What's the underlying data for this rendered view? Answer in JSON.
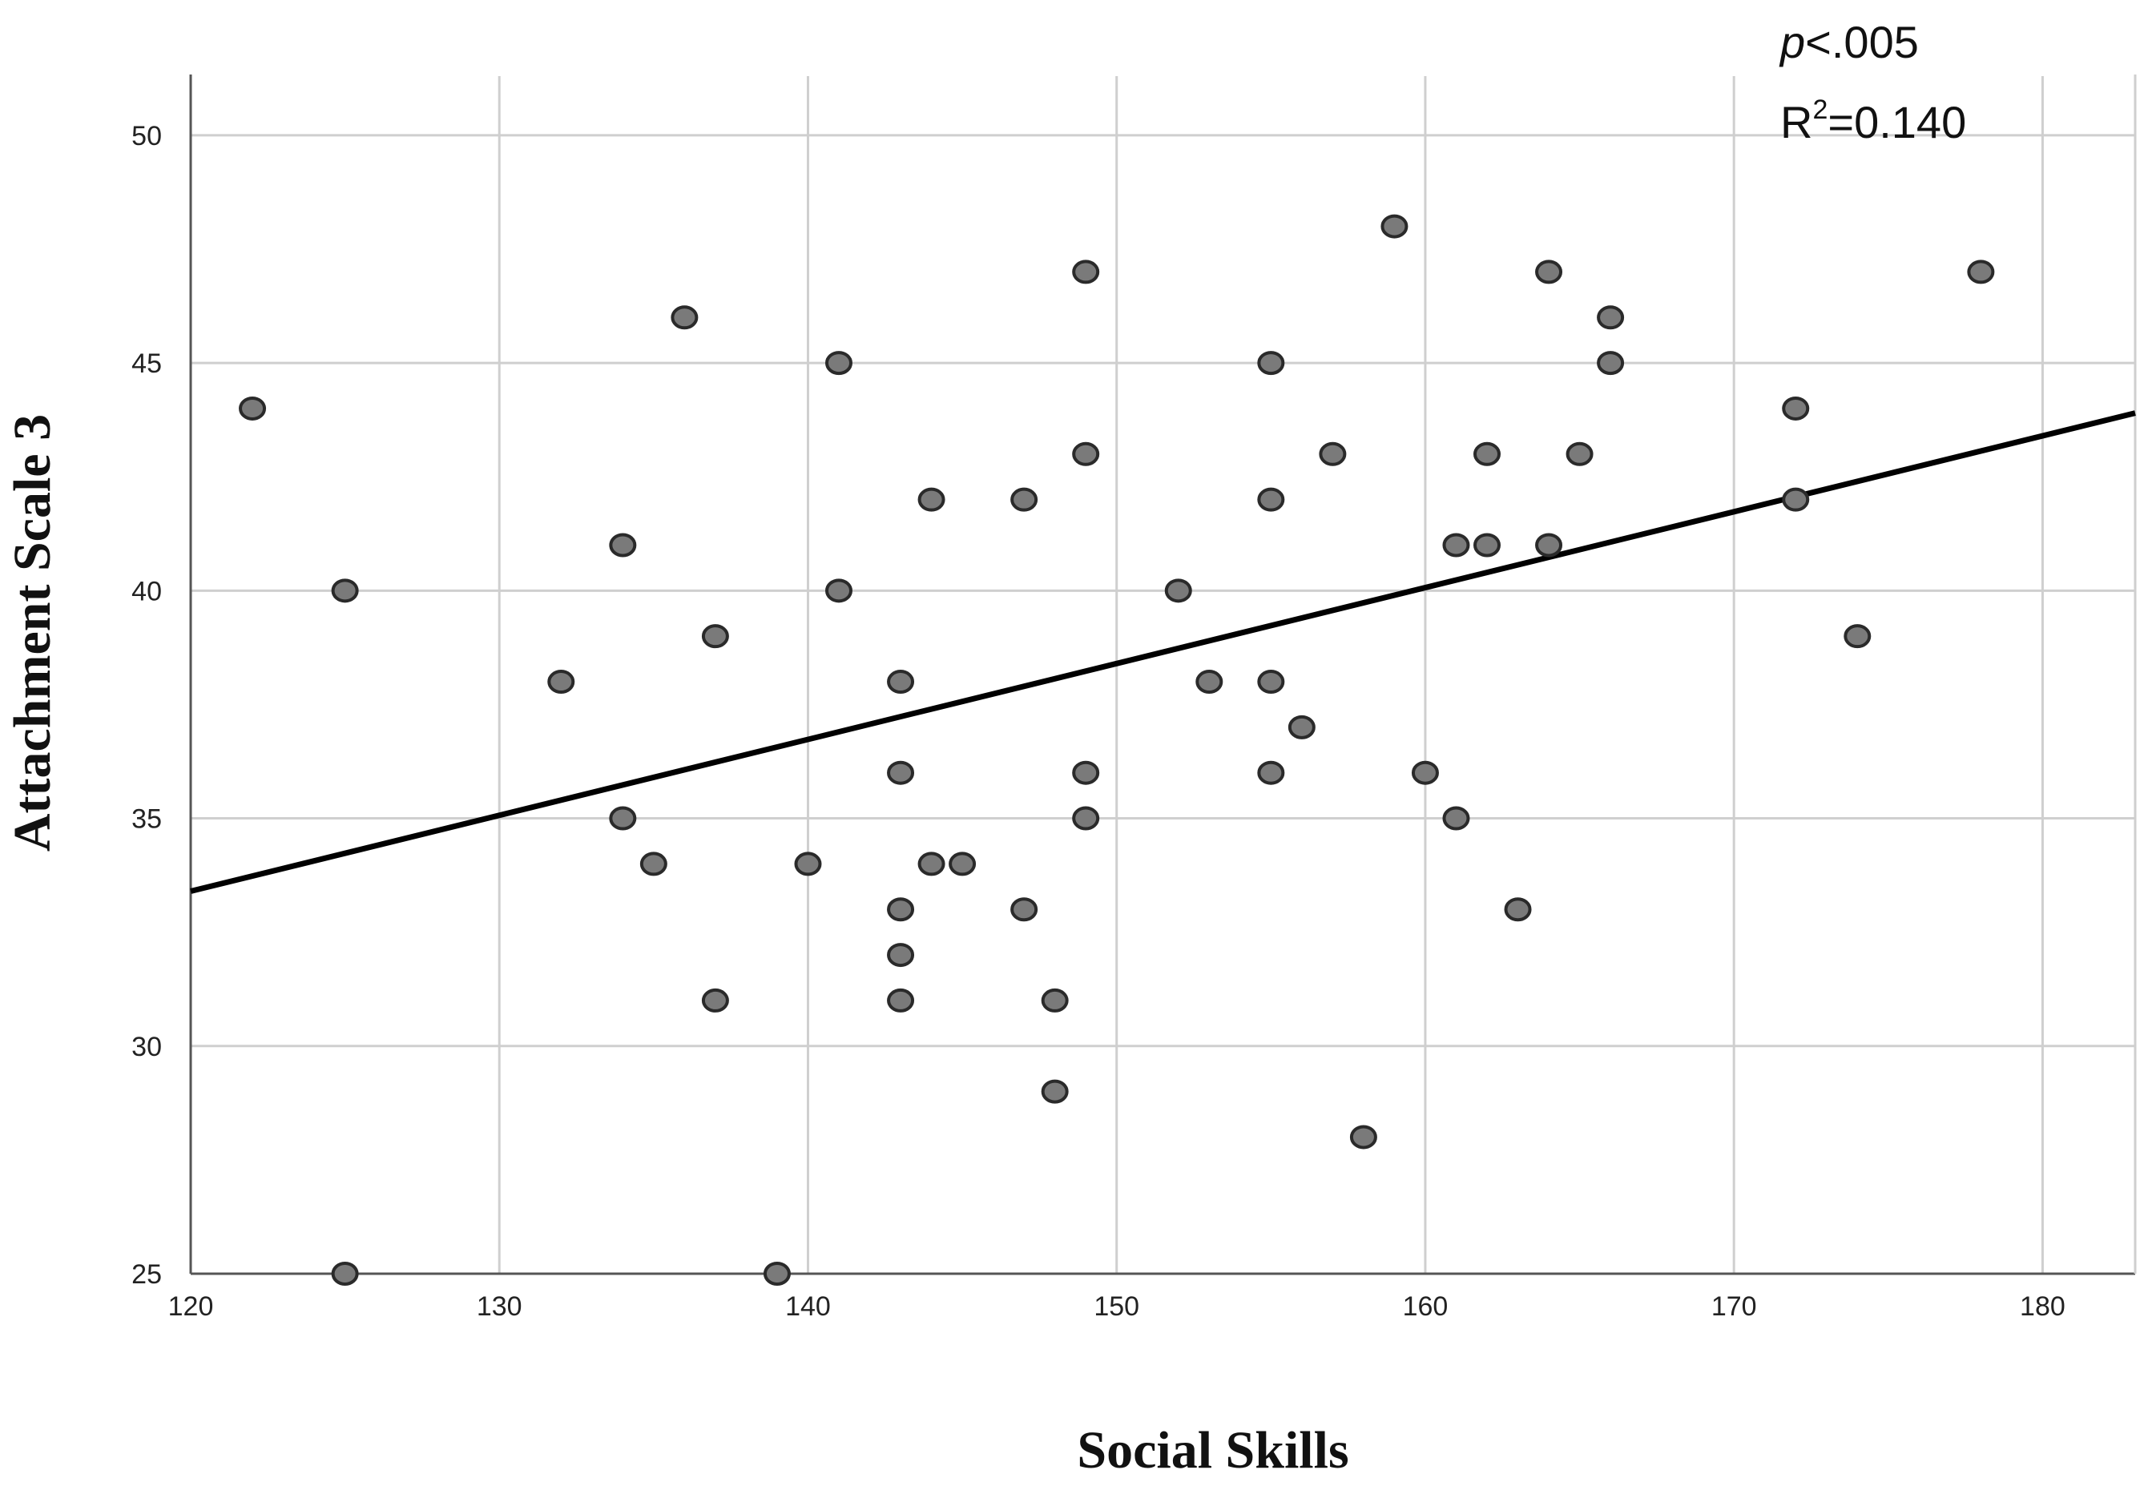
{
  "chart_data": {
    "type": "scatter",
    "title": "",
    "xlabel": "Social Skills",
    "ylabel": "Attachment  Scale 3",
    "xlim": [
      120,
      183
    ],
    "ylim": [
      25,
      51.3
    ],
    "xticks": [
      120,
      130,
      140,
      150,
      160,
      170,
      180
    ],
    "yticks": [
      25,
      30,
      35,
      40,
      45,
      50
    ],
    "grid": true,
    "points": [
      {
        "x": 122,
        "y": 44
      },
      {
        "x": 125,
        "y": 40
      },
      {
        "x": 125,
        "y": 25
      },
      {
        "x": 132,
        "y": 38
      },
      {
        "x": 134,
        "y": 41
      },
      {
        "x": 134,
        "y": 35
      },
      {
        "x": 135,
        "y": 34
      },
      {
        "x": 136,
        "y": 46
      },
      {
        "x": 137,
        "y": 39
      },
      {
        "x": 137,
        "y": 31
      },
      {
        "x": 139,
        "y": 25
      },
      {
        "x": 140,
        "y": 34
      },
      {
        "x": 141,
        "y": 45
      },
      {
        "x": 141,
        "y": 40
      },
      {
        "x": 143,
        "y": 38
      },
      {
        "x": 143,
        "y": 36
      },
      {
        "x": 143,
        "y": 33
      },
      {
        "x": 143,
        "y": 32
      },
      {
        "x": 143,
        "y": 31
      },
      {
        "x": 144,
        "y": 42
      },
      {
        "x": 144,
        "y": 34
      },
      {
        "x": 145,
        "y": 34
      },
      {
        "x": 147,
        "y": 42
      },
      {
        "x": 147,
        "y": 33
      },
      {
        "x": 148,
        "y": 31
      },
      {
        "x": 148,
        "y": 29
      },
      {
        "x": 149,
        "y": 47
      },
      {
        "x": 149,
        "y": 43
      },
      {
        "x": 149,
        "y": 36
      },
      {
        "x": 149,
        "y": 35
      },
      {
        "x": 152,
        "y": 40
      },
      {
        "x": 153,
        "y": 38
      },
      {
        "x": 155,
        "y": 45
      },
      {
        "x": 155,
        "y": 42
      },
      {
        "x": 155,
        "y": 38
      },
      {
        "x": 155,
        "y": 36
      },
      {
        "x": 156,
        "y": 37
      },
      {
        "x": 157,
        "y": 43
      },
      {
        "x": 158,
        "y": 28
      },
      {
        "x": 159,
        "y": 48
      },
      {
        "x": 160,
        "y": 36
      },
      {
        "x": 161,
        "y": 41
      },
      {
        "x": 161,
        "y": 35
      },
      {
        "x": 162,
        "y": 43
      },
      {
        "x": 162,
        "y": 41
      },
      {
        "x": 163,
        "y": 33
      },
      {
        "x": 164,
        "y": 47
      },
      {
        "x": 164,
        "y": 41
      },
      {
        "x": 165,
        "y": 43
      },
      {
        "x": 166,
        "y": 46
      },
      {
        "x": 166,
        "y": 45
      },
      {
        "x": 172,
        "y": 44
      },
      {
        "x": 172,
        "y": 42
      },
      {
        "x": 174,
        "y": 39
      },
      {
        "x": 178,
        "y": 47
      }
    ],
    "fit_line": {
      "x": [
        120,
        183
      ],
      "y": [
        33.4,
        43.9
      ]
    },
    "annotations": {
      "p_label": "p",
      "p_value": "<.005",
      "r2_label": "R",
      "r2_sup": "2",
      "r2_value": "=0.140"
    },
    "marker_color": "#7a7a7a",
    "marker_edge_color": "#2a2a2a",
    "grid_color": "#cfcfcf",
    "line_color": "#000000"
  }
}
